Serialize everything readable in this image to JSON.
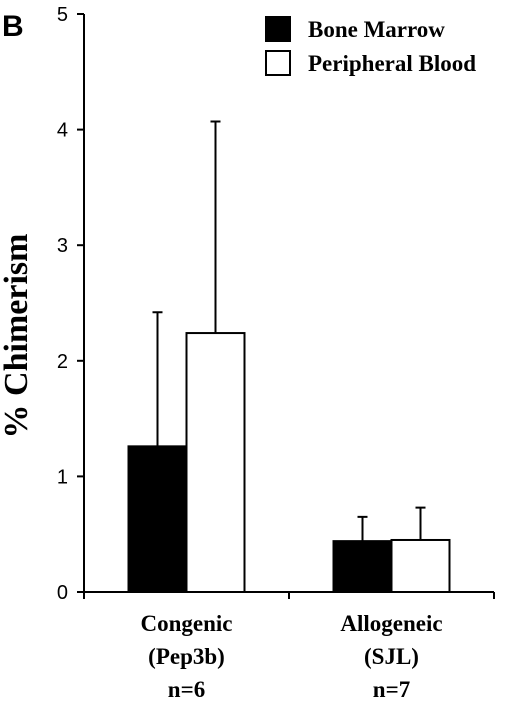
{
  "panel_label": "B",
  "chart_data": {
    "type": "bar",
    "ylabel": "% Chimerism",
    "ylim": [
      0,
      5
    ],
    "yticks": [
      0,
      1,
      2,
      3,
      4,
      5
    ],
    "grid": false,
    "legend_position": "top-right",
    "categories": [
      {
        "lines": [
          "Congenic",
          "(Pep3b)",
          "n=6"
        ]
      },
      {
        "lines": [
          "Allogeneic",
          "(SJL)",
          "n=7"
        ]
      }
    ],
    "series": [
      {
        "name": "Bone Marrow",
        "color": "#000000",
        "values": [
          1.26,
          0.44
        ],
        "errors": [
          1.16,
          0.21
        ]
      },
      {
        "name": "Peripheral Blood",
        "color": "#ffffff",
        "values": [
          2.24,
          0.45
        ],
        "errors": [
          1.83,
          0.28
        ]
      }
    ]
  }
}
